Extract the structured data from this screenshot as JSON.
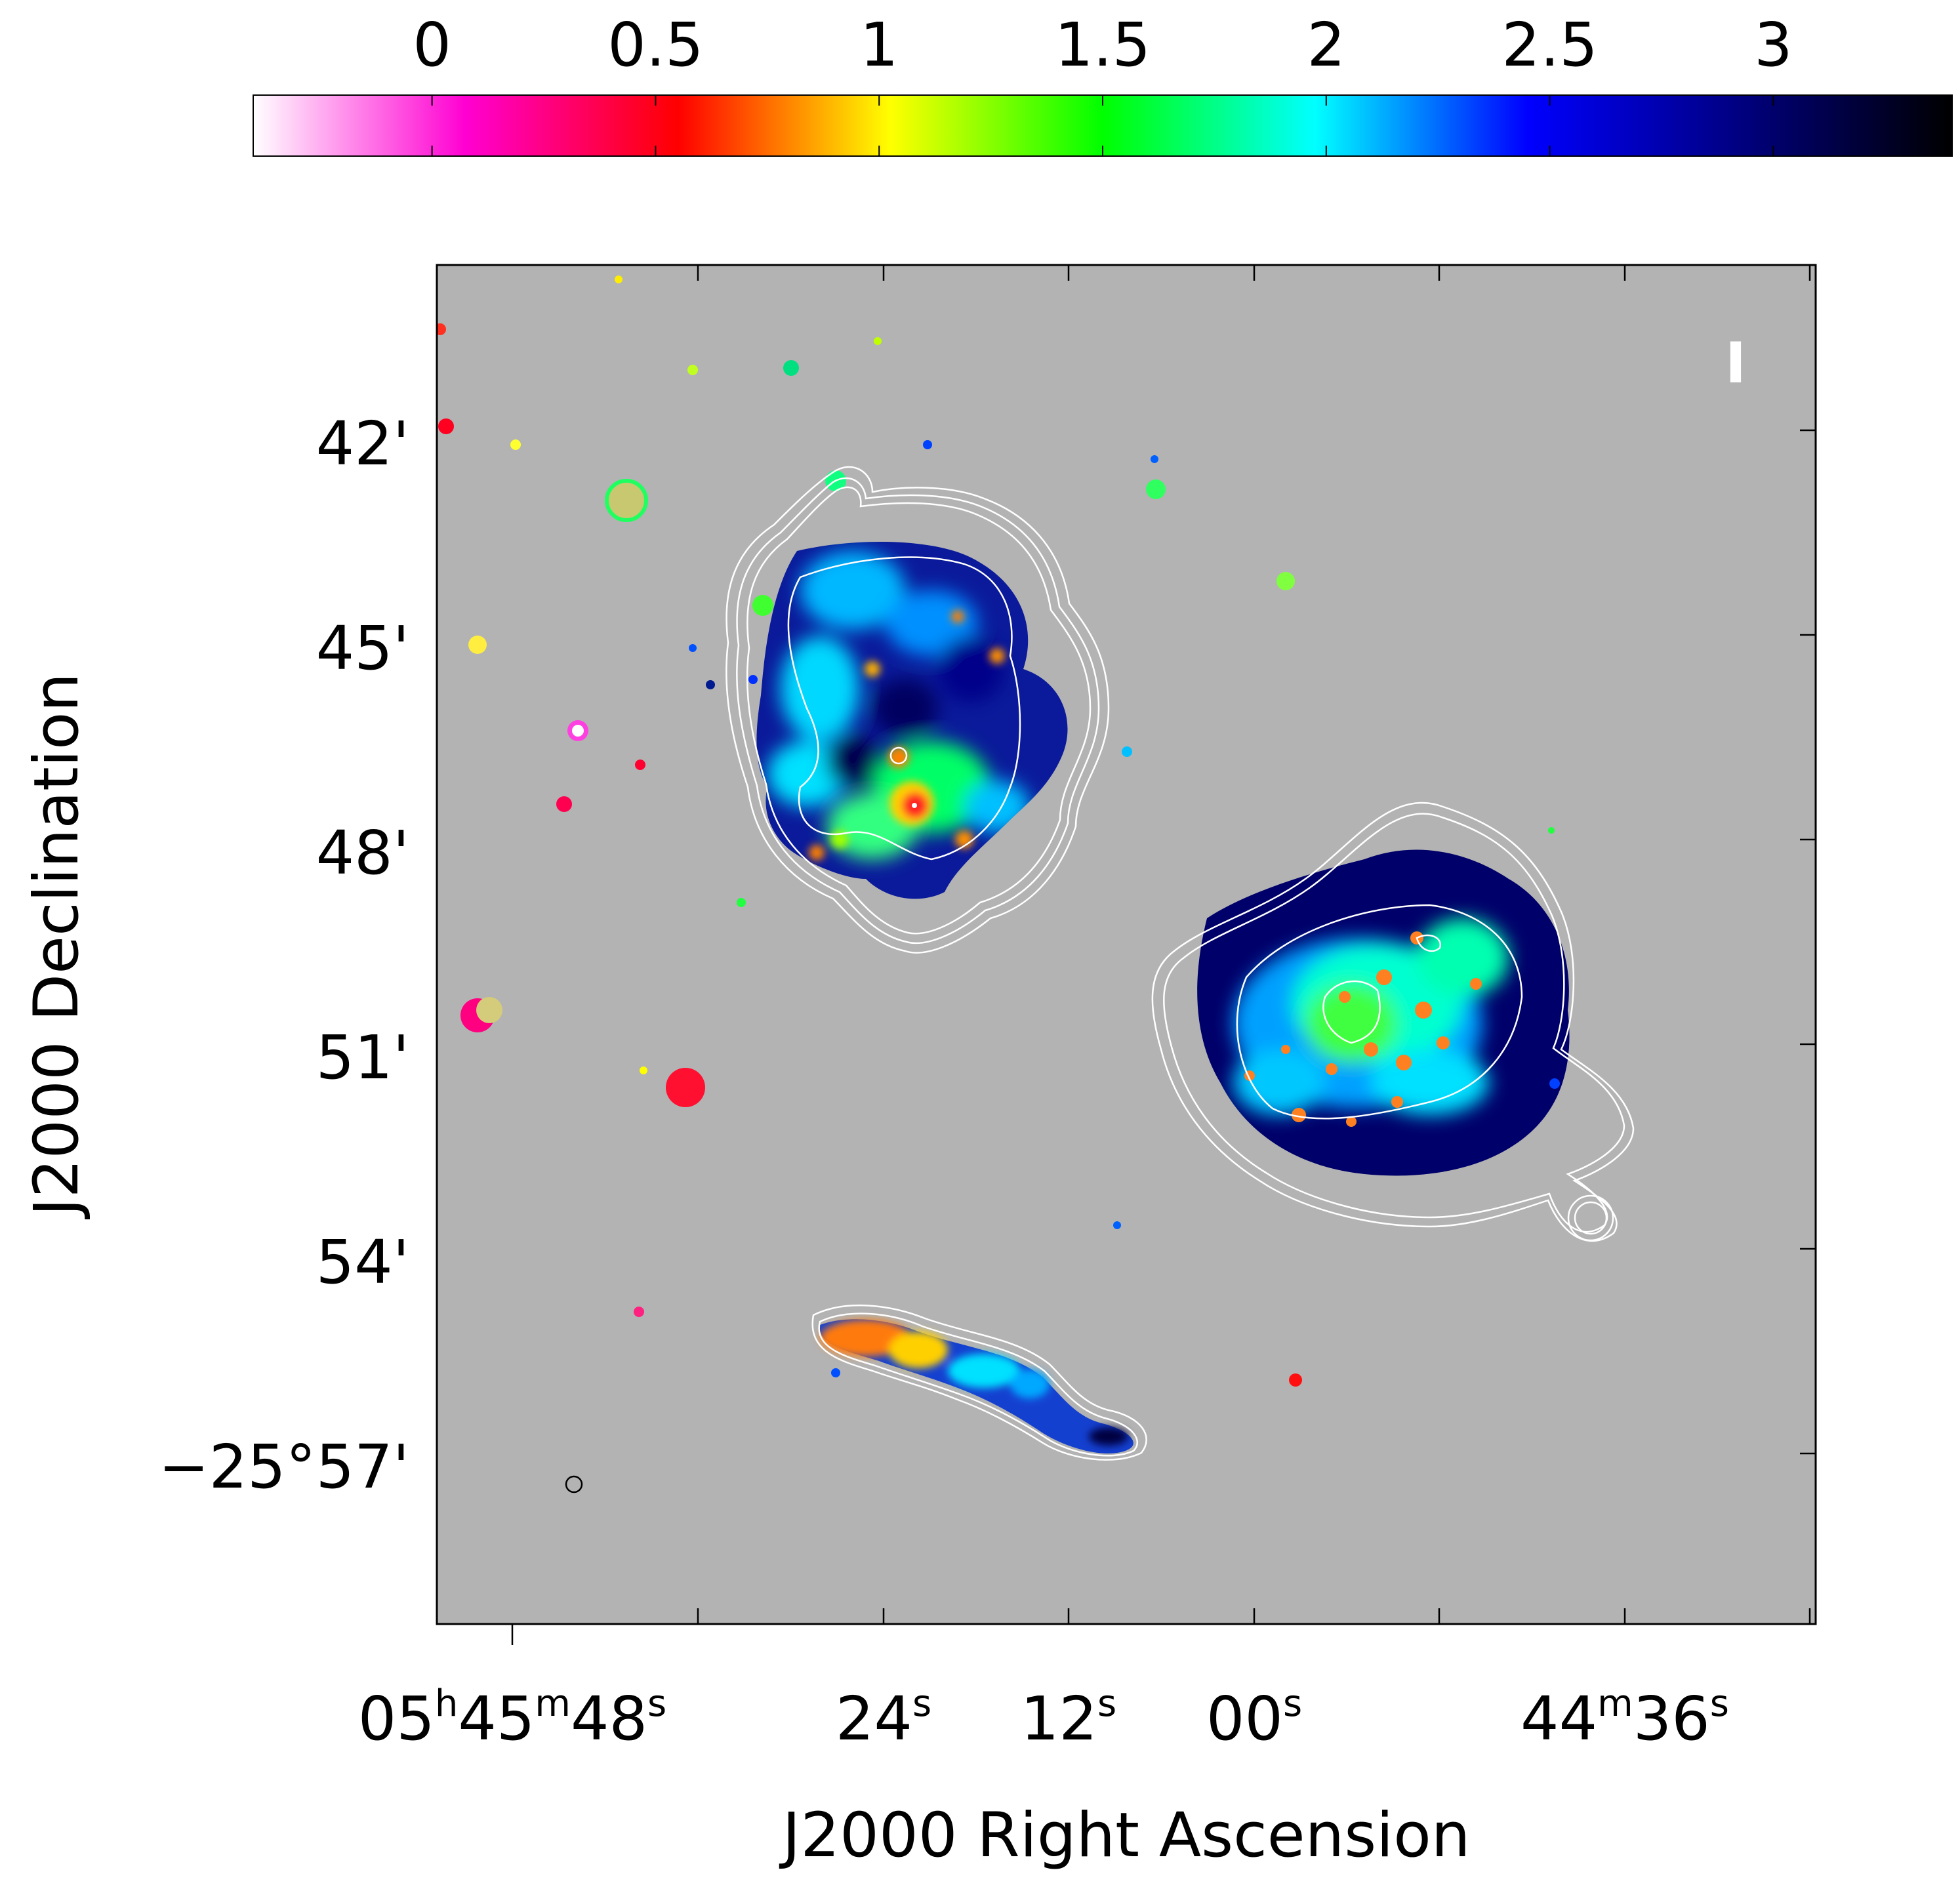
{
  "colorbar": {
    "tick_labels": [
      "0",
      "0.5",
      "1",
      "1.5",
      "2",
      "2.5",
      "3"
    ],
    "tick_values": [
      0,
      0.5,
      1,
      1.5,
      2,
      2.5,
      3
    ],
    "range": [
      -0.4,
      3.4
    ],
    "stops": [
      "#ffffff",
      "#ff00d2",
      "#ff0000",
      "#ffff00",
      "#00ff00",
      "#00ffff",
      "#0000ff",
      "#000080",
      "#000000"
    ]
  },
  "axes": {
    "xlabel": "J2000 Right Ascension",
    "ylabel": "J2000 Declination",
    "x_ticks": [
      {
        "main": "05",
        "h": "h",
        "mid": "45",
        "m": "m",
        "sec": "48",
        "s": "s"
      },
      {
        "sec": "24",
        "s": "s"
      },
      {
        "sec": "12",
        "s": "s"
      },
      {
        "sec": "00",
        "s": "s"
      },
      {
        "min": "44",
        "m": "m",
        "sec": "36",
        "s": "s"
      }
    ],
    "y_ticks": [
      "42'",
      "45'",
      "48'",
      "51'",
      "54'",
      "−25°57'"
    ]
  },
  "panel_marker": "I",
  "colors": {
    "background": "#b3b3b3",
    "contour": "#ffffff"
  }
}
